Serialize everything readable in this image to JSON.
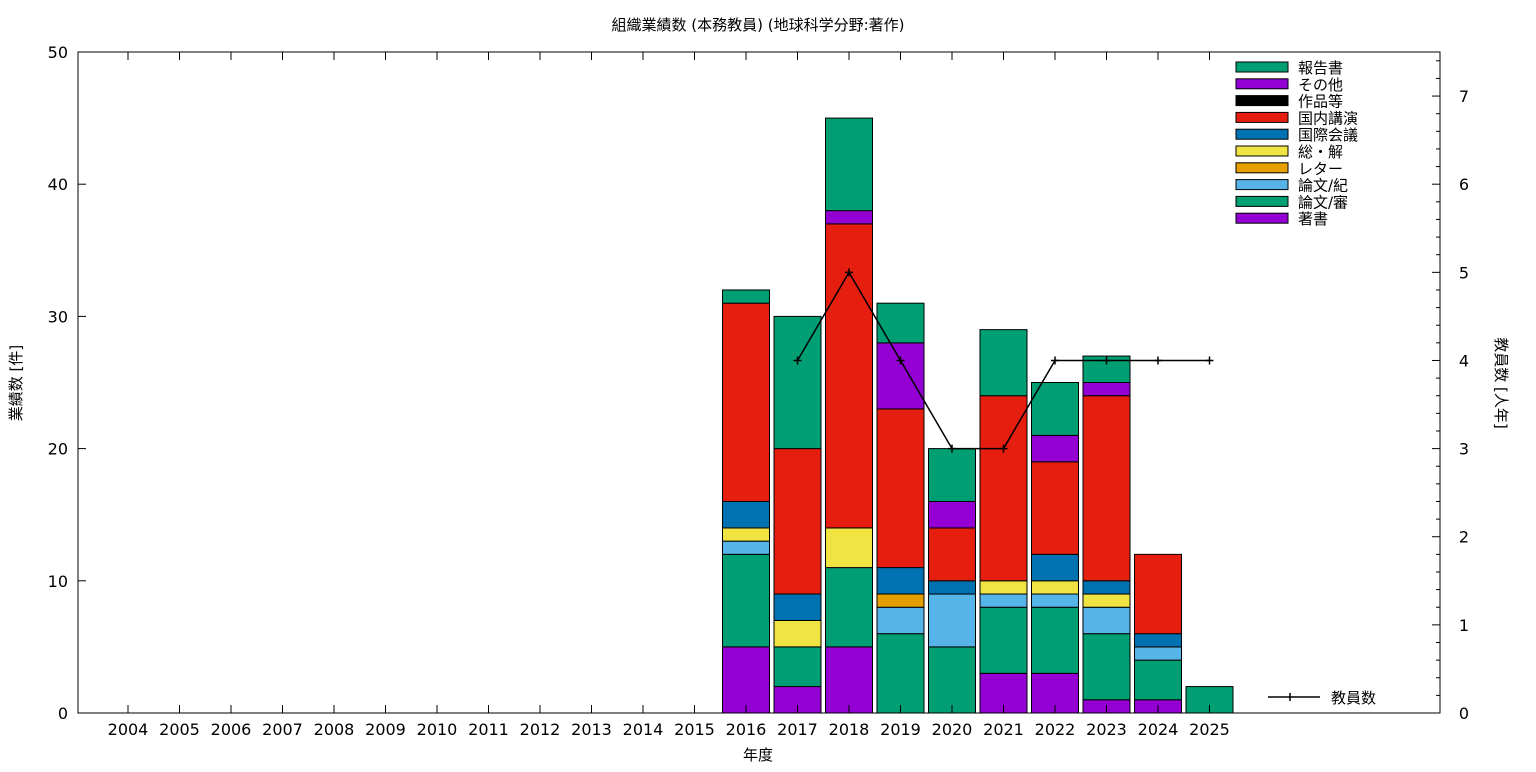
{
  "chart_data": {
    "type": "bar",
    "stacked": true,
    "title": "組織業績数 (本務教員) (地球科学分野:著作)",
    "xlabel": "年度",
    "ylabel": "業績数 [件]",
    "y2label": "教員数 [人年]",
    "ylim": [
      0,
      50
    ],
    "y2lim": [
      0,
      7.5
    ],
    "yticks": [
      0,
      10,
      20,
      30,
      40,
      50
    ],
    "y2ticks": [
      0,
      1,
      2,
      3,
      4,
      5,
      6,
      7
    ],
    "grid": false,
    "legend_position": "top-right",
    "categories": [
      "2004",
      "2005",
      "2006",
      "2007",
      "2008",
      "2009",
      "2010",
      "2011",
      "2012",
      "2013",
      "2014",
      "2015",
      "2016",
      "2017",
      "2018",
      "2019",
      "2020",
      "2021",
      "2022",
      "2023",
      "2024",
      "2025"
    ],
    "series": [
      {
        "name": "著書",
        "color": "#9400d3",
        "values": [
          0,
          0,
          0,
          0,
          0,
          0,
          0,
          0,
          0,
          0,
          0,
          0,
          5,
          2,
          5,
          0,
          0,
          3,
          3,
          1,
          1,
          0
        ]
      },
      {
        "name": "論文/審",
        "color": "#009e73",
        "values": [
          0,
          0,
          0,
          0,
          0,
          0,
          0,
          0,
          0,
          0,
          0,
          0,
          7,
          3,
          6,
          6,
          5,
          5,
          5,
          5,
          3,
          2
        ]
      },
      {
        "name": "論文/紀",
        "color": "#56b4e9",
        "values": [
          0,
          0,
          0,
          0,
          0,
          0,
          0,
          0,
          0,
          0,
          0,
          0,
          1,
          0,
          0,
          2,
          4,
          1,
          1,
          2,
          1,
          0
        ]
      },
      {
        "name": "レター",
        "color": "#e69f00",
        "values": [
          0,
          0,
          0,
          0,
          0,
          0,
          0,
          0,
          0,
          0,
          0,
          0,
          0,
          0,
          0,
          1,
          0,
          0,
          0,
          0,
          0,
          0
        ]
      },
      {
        "name": "総・解",
        "color": "#f0e442",
        "values": [
          0,
          0,
          0,
          0,
          0,
          0,
          0,
          0,
          0,
          0,
          0,
          0,
          1,
          2,
          3,
          0,
          0,
          1,
          1,
          1,
          0,
          0
        ]
      },
      {
        "name": "国際会議",
        "color": "#0072b2",
        "values": [
          0,
          0,
          0,
          0,
          0,
          0,
          0,
          0,
          0,
          0,
          0,
          0,
          2,
          2,
          0,
          2,
          1,
          0,
          2,
          1,
          1,
          0
        ]
      },
      {
        "name": "国内講演",
        "color": "#e51e10",
        "values": [
          0,
          0,
          0,
          0,
          0,
          0,
          0,
          0,
          0,
          0,
          0,
          0,
          15,
          11,
          23,
          12,
          4,
          14,
          7,
          14,
          6,
          0
        ]
      },
      {
        "name": "作品等",
        "color": "#000000",
        "values": [
          0,
          0,
          0,
          0,
          0,
          0,
          0,
          0,
          0,
          0,
          0,
          0,
          0,
          0,
          0,
          0,
          0,
          0,
          0,
          0,
          0,
          0
        ]
      },
      {
        "name": "その他",
        "color": "#9400d3",
        "values": [
          0,
          0,
          0,
          0,
          0,
          0,
          0,
          0,
          0,
          0,
          0,
          0,
          0,
          0,
          1,
          5,
          2,
          0,
          2,
          1,
          0,
          0
        ]
      },
      {
        "name": "報告書",
        "color": "#009e73",
        "values": [
          0,
          0,
          0,
          0,
          0,
          0,
          0,
          0,
          0,
          0,
          0,
          0,
          1,
          10,
          7,
          3,
          4,
          5,
          4,
          2,
          0,
          0
        ]
      }
    ],
    "line_series": {
      "name": "教員数",
      "axis": "y2",
      "color": "#000000",
      "x": [
        "2017",
        "2018",
        "2019",
        "2020",
        "2021",
        "2022",
        "2023",
        "2024",
        "2025"
      ],
      "values": [
        4,
        5,
        4,
        3,
        3,
        4,
        4,
        4,
        4
      ]
    }
  }
}
